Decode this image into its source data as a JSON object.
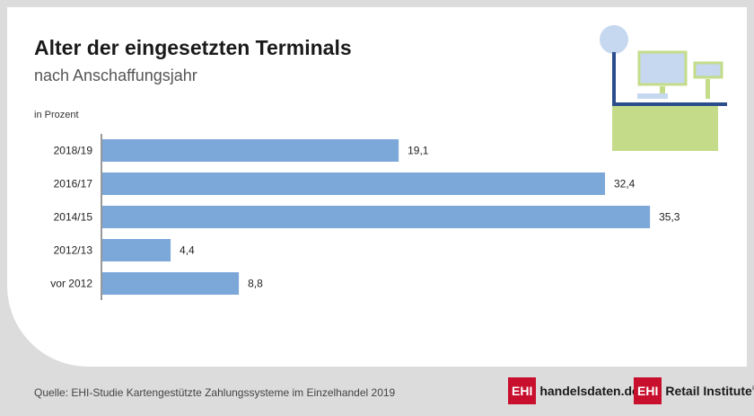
{
  "header": {
    "title": "Alter der eingesetzten Terminals",
    "subtitle": "nach Anschaffungsjahr",
    "unit_label": "in Prozent"
  },
  "chart_data": {
    "type": "bar",
    "orientation": "horizontal",
    "categories": [
      "2018/19",
      "2016/17",
      "2014/15",
      "2012/13",
      "vor 2012"
    ],
    "values": [
      19.1,
      32.4,
      35.3,
      4.4,
      8.8
    ],
    "value_labels": [
      "19,1",
      "32,4",
      "35,3",
      "4,4",
      "8,8"
    ],
    "ylabel": "in Prozent",
    "xlim": [
      0,
      40
    ],
    "grid": false,
    "bar_color": "#7ba7d9"
  },
  "footer": {
    "source": "Quelle: EHI-Studie Kartengestützte Zahlungssysteme im Einzelhandel 2019",
    "logo1_box": "EHI",
    "logo1_text": "handelsdaten.de",
    "logo2_box": "EHI",
    "logo2_text": "Retail Institute",
    "logo2_reg": "®"
  },
  "colors": {
    "brand_red": "#c8102e",
    "bar": "#7ba7d9",
    "illustration_green": "#c4dc8a",
    "illustration_navy": "#2b4d8c",
    "illustration_blue": "#c5d8f0"
  },
  "icons": {
    "illustration": "checkout-terminal-icon"
  }
}
